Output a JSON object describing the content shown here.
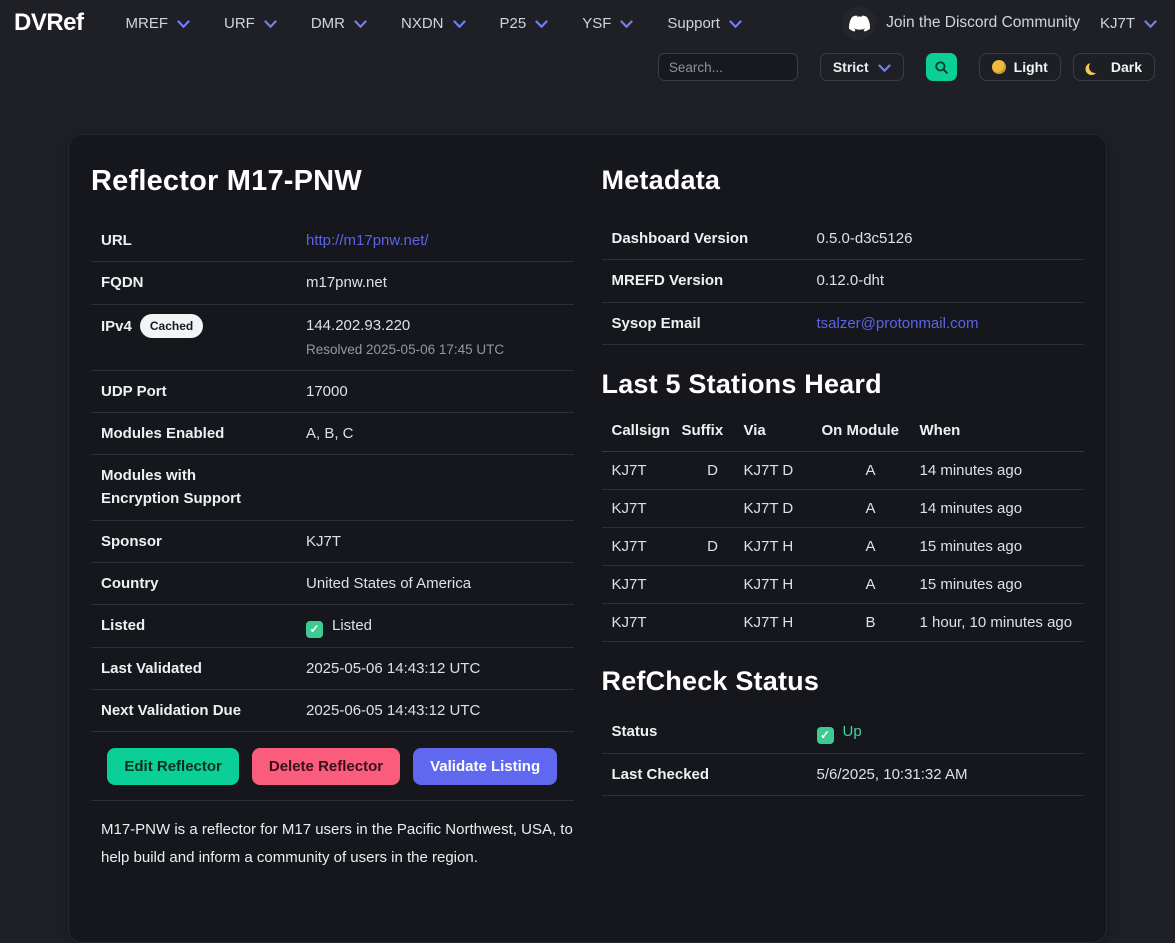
{
  "colors": {
    "accent": "#727cf5",
    "link": "#5b64e8",
    "success": "#0acf97",
    "danger": "#fa5c7c",
    "primary": "#5f68ef",
    "up_green": "#42d3a5",
    "background": "#1e2026",
    "card": "#15171c"
  },
  "header": {
    "logo": "DVRef",
    "nav": [
      {
        "label": "MREF"
      },
      {
        "label": "URF"
      },
      {
        "label": "DMR"
      },
      {
        "label": "NXDN"
      },
      {
        "label": "P25"
      },
      {
        "label": "YSF"
      },
      {
        "label": "Support"
      }
    ],
    "discord_label": "Join the Discord Community",
    "user": "KJ7T",
    "search_placeholder": "Search...",
    "match_mode": "Strict",
    "light_label": "Light",
    "dark_label": "Dark"
  },
  "reflector": {
    "title": "Reflector M17-PNW",
    "rows": [
      {
        "label": "URL",
        "value": "http://m17pnw.net/",
        "type": "link"
      },
      {
        "label": "FQDN",
        "value": "m17pnw.net"
      },
      {
        "label": "IPv4",
        "badge": "Cached",
        "value": "144.202.93.220",
        "sub": "Resolved 2025-05-06 17:45 UTC"
      },
      {
        "label": "UDP Port",
        "value": "17000"
      },
      {
        "label": "Modules Enabled",
        "value": "A, B, C"
      },
      {
        "label": "Modules with Encryption Support",
        "value": ""
      },
      {
        "label": "Sponsor",
        "value": "KJ7T"
      },
      {
        "label": "Country",
        "value": "United States of America"
      },
      {
        "label": "Listed",
        "value": "Listed",
        "type": "check"
      },
      {
        "label": "Last Validated",
        "value": "2025-05-06 14:43:12 UTC"
      },
      {
        "label": "Next Validation Due",
        "value": "2025-06-05 14:43:12 UTC"
      }
    ],
    "buttons": {
      "edit": "Edit Reflector",
      "delete": "Delete Reflector",
      "validate": "Validate Listing"
    },
    "description": "M17-PNW is a reflector for M17 users in the Pacific Northwest, USA, to help build and inform a community of users in the region."
  },
  "metadata": {
    "title": "Metadata",
    "rows": [
      {
        "label": "Dashboard Version",
        "value": "0.5.0-d3c5126"
      },
      {
        "label": "MREFD Version",
        "value": "0.12.0-dht"
      },
      {
        "label": "Sysop Email",
        "value": "tsalzer@protonmail.com",
        "type": "link"
      }
    ]
  },
  "stations": {
    "title": "Last 5 Stations Heard",
    "columns": [
      "Callsign",
      "Suffix",
      "Via",
      "On Module",
      "When"
    ],
    "rows": [
      [
        "KJ7T",
        "D",
        "KJ7T D",
        "A",
        "14 minutes ago"
      ],
      [
        "KJ7T",
        "",
        "KJ7T D",
        "A",
        "14 minutes ago"
      ],
      [
        "KJ7T",
        "D",
        "KJ7T H",
        "A",
        "15 minutes ago"
      ],
      [
        "KJ7T",
        "",
        "KJ7T H",
        "A",
        "15 minutes ago"
      ],
      [
        "KJ7T",
        "",
        "KJ7T H",
        "B",
        "1 hour, 10 minutes ago"
      ]
    ]
  },
  "refcheck": {
    "title": "RefCheck Status",
    "rows": [
      {
        "label": "Status",
        "value": "Up",
        "type": "check-green"
      },
      {
        "label": "Last Checked",
        "value": "5/6/2025, 10:31:32 AM"
      }
    ]
  }
}
